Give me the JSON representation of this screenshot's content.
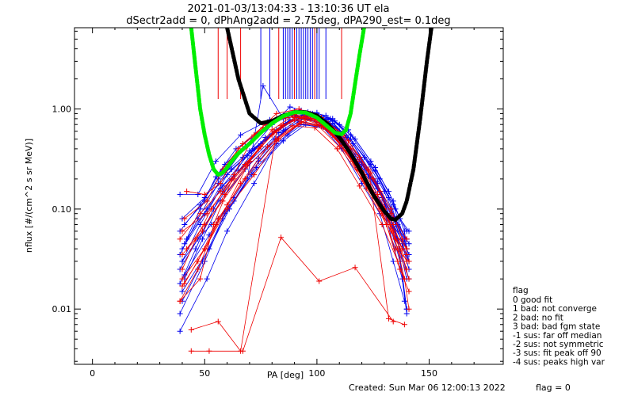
{
  "header": {
    "title_line1": "2021-01-03/13:04:33 - 13:10:36 UT ela",
    "title_line2": "dSectr2add = 0, dPhAng2add = 2.75deg, dPA290_est=   0.1deg"
  },
  "legend": {
    "title": "flag",
    "items": [
      " 0 good fit",
      " 1 bad: not converge",
      " 2 bad: no fit",
      " 3 bad: bad fgm state",
      "-1 sus: far off median",
      "-2 sus: not symmetric",
      "-3 sus: fit peak off 90",
      "-4 sus: peaks high var"
    ]
  },
  "footer": {
    "created": "Created: Sun Mar 06 12:00:13 2022",
    "flag": "flag = 0"
  },
  "colors": {
    "blue": "#0000ee",
    "red": "#ee0000",
    "black_fit": "#000000",
    "green_fit": "#00ee00"
  },
  "chart_data": {
    "type": "line",
    "xlabel": "PA [deg]",
    "ylabel": "nflux [#/(cm^2 s sr MeV)]",
    "xlim": [
      -8,
      183
    ],
    "ylim": [
      0.0028,
      6.5
    ],
    "yscale": "log",
    "x_ticks": [
      0,
      50,
      100,
      150
    ],
    "x_tick_labels": [
      "0",
      "50",
      "100",
      "150"
    ],
    "y_ticks": [
      0.01,
      0.1,
      1.0
    ],
    "y_tick_labels": [
      "0.01",
      "0.10",
      "1.00"
    ],
    "black_fit": {
      "x": [
        60,
        65,
        70,
        75,
        80,
        85,
        90,
        95,
        100,
        105,
        110,
        115,
        120,
        125,
        130,
        133,
        135,
        138,
        140,
        143,
        146,
        149,
        151
      ],
      "y": [
        6.5,
        2.0,
        0.9,
        0.72,
        0.76,
        0.86,
        0.93,
        0.93,
        0.86,
        0.7,
        0.52,
        0.36,
        0.23,
        0.14,
        0.095,
        0.08,
        0.078,
        0.09,
        0.12,
        0.25,
        0.8,
        3.0,
        6.5
      ]
    },
    "green_fit": {
      "x": [
        44,
        46,
        48,
        50,
        52,
        54,
        56,
        58,
        60,
        62,
        65,
        70,
        75,
        80,
        85,
        90,
        95,
        100,
        105,
        108,
        111,
        113,
        115,
        117,
        119,
        121
      ],
      "y": [
        6.5,
        2.5,
        1.0,
        0.55,
        0.35,
        0.25,
        0.22,
        0.23,
        0.26,
        0.3,
        0.36,
        0.45,
        0.58,
        0.72,
        0.85,
        0.93,
        0.92,
        0.82,
        0.66,
        0.58,
        0.56,
        0.62,
        0.9,
        1.8,
        3.5,
        6.5
      ]
    },
    "vertical_markers": [
      {
        "x": 56,
        "color": "red"
      },
      {
        "x": 60,
        "color": "red"
      },
      {
        "x": 66,
        "color": "red"
      },
      {
        "x": 75,
        "color": "blue"
      },
      {
        "x": 79,
        "color": "blue"
      },
      {
        "x": 83,
        "color": "red"
      },
      {
        "x": 85,
        "color": "blue"
      },
      {
        "x": 86,
        "color": "blue"
      },
      {
        "x": 87,
        "color": "blue"
      },
      {
        "x": 88,
        "color": "blue"
      },
      {
        "x": 89,
        "color": "blue"
      },
      {
        "x": 90,
        "color": "red"
      },
      {
        "x": 91,
        "color": "blue"
      },
      {
        "x": 92,
        "color": "blue"
      },
      {
        "x": 93,
        "color": "blue"
      },
      {
        "x": 94,
        "color": "blue"
      },
      {
        "x": 95,
        "color": "blue"
      },
      {
        "x": 96,
        "color": "blue"
      },
      {
        "x": 97,
        "color": "blue"
      },
      {
        "x": 98,
        "color": "blue"
      },
      {
        "x": 99,
        "color": "red"
      },
      {
        "x": 100,
        "color": "blue"
      },
      {
        "x": 101,
        "color": "blue"
      },
      {
        "x": 104,
        "color": "blue"
      },
      {
        "x": 111,
        "color": "red"
      }
    ],
    "series": [
      {
        "color": "blue",
        "x": [
          39,
          48,
          56,
          67,
          82,
          91,
          101,
          109,
          118,
          126,
          134,
          140
        ],
        "y": [
          0.06,
          0.11,
          0.2,
          0.33,
          0.62,
          0.85,
          0.74,
          0.5,
          0.26,
          0.14,
          0.07,
          0.04
        ]
      },
      {
        "color": "blue",
        "x": [
          40,
          50,
          58,
          70,
          83,
          93,
          103,
          112,
          121,
          129,
          136,
          141
        ],
        "y": [
          0.04,
          0.09,
          0.17,
          0.3,
          0.58,
          0.82,
          0.7,
          0.45,
          0.22,
          0.11,
          0.05,
          0.03
        ]
      },
      {
        "color": "blue",
        "x": [
          39,
          47,
          55,
          66,
          79,
          90,
          100,
          110,
          119,
          127,
          135,
          140
        ],
        "y": [
          0.14,
          0.14,
          0.3,
          0.55,
          0.78,
          0.9,
          0.85,
          0.6,
          0.3,
          0.16,
          0.08,
          0.05
        ]
      },
      {
        "color": "blue",
        "x": [
          41,
          49,
          57,
          68,
          81,
          92,
          102,
          111,
          120,
          128,
          134,
          139
        ],
        "y": [
          0.02,
          0.05,
          0.12,
          0.25,
          0.5,
          0.76,
          0.68,
          0.4,
          0.18,
          0.09,
          0.03,
          0.012
        ]
      },
      {
        "color": "blue",
        "x": [
          40,
          48,
          57,
          69,
          84,
          94,
          104,
          113,
          122,
          130,
          137,
          141
        ],
        "y": [
          0.03,
          0.07,
          0.16,
          0.34,
          0.65,
          0.86,
          0.78,
          0.52,
          0.25,
          0.12,
          0.04,
          0.02
        ]
      },
      {
        "color": "blue",
        "x": [
          39,
          50,
          59,
          71,
          85,
          95,
          105,
          114,
          123,
          131,
          138,
          140
        ],
        "y": [
          0.009,
          0.03,
          0.09,
          0.22,
          0.48,
          0.7,
          0.62,
          0.38,
          0.17,
          0.08,
          0.02,
          0.009
        ]
      },
      {
        "color": "blue",
        "x": [
          42,
          51,
          60,
          72,
          86,
          96,
          106,
          115,
          124,
          132,
          137,
          141
        ],
        "y": [
          0.05,
          0.1,
          0.22,
          0.4,
          0.72,
          0.93,
          0.8,
          0.55,
          0.28,
          0.13,
          0.06,
          0.035
        ]
      },
      {
        "color": "blue",
        "x": [
          39,
          49,
          58,
          70,
          80,
          88,
          98,
          108,
          117,
          126,
          133,
          139
        ],
        "y": [
          0.025,
          0.06,
          0.15,
          0.38,
          0.7,
          1.05,
          0.9,
          0.66,
          0.35,
          0.19,
          0.09,
          0.05
        ]
      },
      {
        "color": "blue",
        "x": [
          40,
          52,
          61,
          73,
          87,
          97,
          107,
          116,
          125,
          133,
          138,
          141
        ],
        "y": [
          0.015,
          0.04,
          0.1,
          0.26,
          0.55,
          0.8,
          0.72,
          0.45,
          0.2,
          0.1,
          0.045,
          0.025
        ]
      },
      {
        "color": "blue",
        "x": [
          41,
          50,
          62,
          75,
          88,
          98,
          108,
          117,
          126,
          134,
          139,
          140
        ],
        "y": [
          0.07,
          0.12,
          0.25,
          0.45,
          0.75,
          0.88,
          0.76,
          0.5,
          0.26,
          0.12,
          0.06,
          0.04
        ]
      },
      {
        "color": "blue",
        "x": [
          39,
          47,
          56,
          68,
          78,
          90,
          100,
          110,
          121,
          130,
          136,
          141
        ],
        "y": [
          0.035,
          0.08,
          0.18,
          0.42,
          0.7,
          0.95,
          0.92,
          0.7,
          0.33,
          0.15,
          0.07,
          0.045
        ]
      },
      {
        "color": "blue",
        "x": [
          40,
          49,
          58,
          69,
          76,
          85,
          97,
          107,
          115,
          128,
          135,
          140
        ],
        "y": [
          0.012,
          0.03,
          0.08,
          0.2,
          1.7,
          0.8,
          0.9,
          0.8,
          0.5,
          0.2,
          0.1,
          0.06
        ]
      },
      {
        "color": "blue",
        "x": [
          39,
          51,
          60,
          72,
          82,
          92,
          103,
          113,
          123,
          131,
          137,
          140
        ],
        "y": [
          0.006,
          0.02,
          0.06,
          0.18,
          0.45,
          0.7,
          0.66,
          0.44,
          0.21,
          0.09,
          0.03,
          0.01
        ]
      },
      {
        "color": "blue",
        "x": [
          40,
          50,
          59,
          71,
          83,
          93,
          104,
          114,
          124,
          132,
          137,
          141
        ],
        "y": [
          0.08,
          0.13,
          0.28,
          0.5,
          0.8,
          0.97,
          0.86,
          0.62,
          0.3,
          0.15,
          0.08,
          0.06
        ]
      },
      {
        "color": "blue",
        "x": [
          41,
          48,
          55,
          64,
          78,
          89,
          99,
          109,
          120,
          129,
          135,
          140
        ],
        "y": [
          0.045,
          0.1,
          0.21,
          0.4,
          0.68,
          0.87,
          0.83,
          0.6,
          0.28,
          0.13,
          0.06,
          0.02
        ]
      },
      {
        "color": "blue",
        "x": [
          39,
          46,
          54,
          65,
          77,
          88,
          99,
          110,
          118,
          128,
          135,
          141
        ],
        "y": [
          0.018,
          0.04,
          0.1,
          0.24,
          0.52,
          0.78,
          0.81,
          0.57,
          0.3,
          0.15,
          0.07,
          0.03
        ]
      },
      {
        "color": "blue",
        "x": [
          40,
          47,
          53,
          63,
          74,
          86,
          96,
          106,
          116,
          127,
          136,
          140
        ],
        "y": [
          0.03,
          0.05,
          0.07,
          0.12,
          0.3,
          0.62,
          0.85,
          0.78,
          0.45,
          0.18,
          0.05,
          0.01
        ]
      },
      {
        "color": "blue",
        "x": [
          41,
          52,
          63,
          74,
          85,
          95,
          105,
          115,
          126,
          134,
          139,
          141
        ],
        "y": [
          0.022,
          0.055,
          0.13,
          0.32,
          0.6,
          0.83,
          0.75,
          0.5,
          0.24,
          0.11,
          0.05,
          0.03
        ]
      },
      {
        "color": "red",
        "x": [
          39,
          48,
          57,
          68,
          80,
          90,
          100,
          110,
          120,
          128,
          135,
          140
        ],
        "y": [
          0.05,
          0.09,
          0.15,
          0.28,
          0.55,
          0.78,
          0.7,
          0.42,
          0.2,
          0.1,
          0.05,
          0.03
        ]
      },
      {
        "color": "red",
        "x": [
          40,
          50,
          60,
          72,
          83,
          93,
          103,
          113,
          122,
          131,
          137,
          141
        ],
        "y": [
          0.02,
          0.04,
          0.1,
          0.22,
          0.5,
          0.74,
          0.66,
          0.38,
          0.16,
          0.07,
          0.025,
          0.015
        ]
      },
      {
        "color": "red",
        "x": [
          41,
          51,
          58,
          67,
          77,
          87,
          97,
          107,
          118,
          127,
          134,
          140
        ],
        "y": [
          0.08,
          0.12,
          0.25,
          0.45,
          0.7,
          0.86,
          0.8,
          0.55,
          0.25,
          0.12,
          0.06,
          0.04
        ]
      },
      {
        "color": "red",
        "x": [
          39,
          47,
          55,
          66,
          78,
          89,
          99,
          109,
          119,
          129,
          136,
          139
        ],
        "y": [
          0.012,
          0.025,
          0.07,
          0.18,
          0.42,
          0.68,
          0.65,
          0.4,
          0.17,
          0.07,
          0.03,
          0.02
        ]
      },
      {
        "color": "red",
        "x": [
          40,
          49,
          59,
          70,
          81,
          91,
          101,
          111,
          121,
          130,
          137,
          140
        ],
        "y": [
          0.035,
          0.06,
          0.14,
          0.3,
          0.6,
          0.82,
          0.74,
          0.46,
          0.22,
          0.1,
          0.04,
          0.025
        ]
      },
      {
        "color": "red",
        "x": [
          42,
          50,
          57,
          65,
          76,
          86,
          96,
          106,
          116,
          126,
          133,
          140
        ],
        "y": [
          0.15,
          0.14,
          0.18,
          0.4,
          0.65,
          0.82,
          0.86,
          0.6,
          0.3,
          0.13,
          0.06,
          0.035
        ]
      },
      {
        "color": "red",
        "x": [
          40,
          46,
          53,
          62,
          74,
          85,
          95,
          105,
          115,
          125,
          133,
          140
        ],
        "y": [
          0.025,
          0.05,
          0.1,
          0.2,
          0.4,
          0.7,
          0.83,
          0.72,
          0.4,
          0.2,
          0.09,
          0.05
        ]
      },
      {
        "color": "red",
        "x": [
          41,
          50,
          60,
          70,
          80,
          90,
          100,
          110,
          120,
          130,
          136,
          141
        ],
        "y": [
          0.018,
          0.04,
          0.11,
          0.3,
          0.62,
          0.88,
          0.79,
          0.52,
          0.24,
          0.1,
          0.04,
          0.02
        ]
      },
      {
        "color": "red",
        "x": [
          39,
          48,
          54,
          63,
          72,
          82,
          92,
          102,
          112,
          123,
          132,
          139
        ],
        "y": [
          0.012,
          0.02,
          0.07,
          0.22,
          0.55,
          0.9,
          1.0,
          0.82,
          0.55,
          0.25,
          0.008,
          0.007
        ]
      },
      {
        "color": "red",
        "x": [
          42,
          50,
          58,
          69,
          82,
          92,
          102,
          112,
          121,
          129,
          135,
          141
        ],
        "y": [
          0.04,
          0.07,
          0.12,
          0.27,
          0.5,
          0.72,
          0.67,
          0.43,
          0.19,
          0.09,
          0.04,
          0.03
        ]
      },
      {
        "color": "red",
        "x": [
          40,
          51,
          63,
          75,
          84,
          94,
          104,
          114,
          124,
          133,
          138,
          140
        ],
        "y": [
          0.06,
          0.09,
          0.2,
          0.42,
          0.68,
          0.83,
          0.73,
          0.48,
          0.23,
          0.1,
          0.05,
          0.04
        ]
      },
      {
        "color": "red",
        "x": [
          44,
          52,
          67,
          84,
          101,
          117,
          134
        ],
        "y": [
          0.0038,
          0.0038,
          0.0038,
          0.052,
          0.019,
          0.026,
          0.0075
        ]
      },
      {
        "color": "red",
        "x": [
          40,
          47,
          56,
          68,
          82,
          95,
          108,
          119,
          128,
          134,
          139,
          141
        ],
        "y": [
          0.017,
          0.03,
          0.08,
          0.2,
          0.48,
          0.78,
          0.62,
          0.33,
          0.15,
          0.06,
          0.02,
          0.01
        ]
      },
      {
        "color": "red",
        "x": [
          44,
          56,
          66,
          82,
          90,
          99,
          108,
          118,
          127,
          134,
          138
        ],
        "y": [
          0.0062,
          0.0075,
          0.0038,
          0.6,
          0.82,
          0.8,
          0.58,
          0.3,
          0.14,
          0.07,
          0.04
        ]
      }
    ]
  }
}
